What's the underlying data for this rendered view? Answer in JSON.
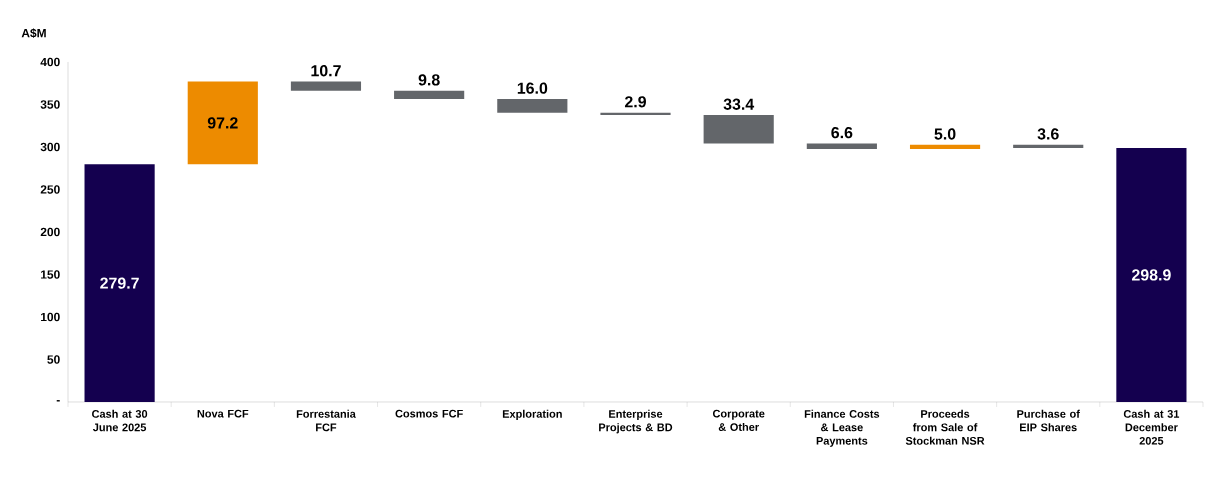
{
  "chart_data": {
    "type": "bar",
    "ylabel": "A$M",
    "categories": [
      "Cash at 30 June 2025",
      "Nova FCF",
      "Forrestania FCF",
      "Cosmos FCF",
      "Exploration",
      "Enterprise Projects & BD",
      "Corporate & Other",
      "Finance Costs & Lease Payments",
      "Proceeds from Sale of Stockman NSR",
      "Purchase of EIP Shares",
      "Cash at 31 December 2025"
    ],
    "values": [
      279.7,
      97.2,
      -10.7,
      -9.8,
      -16.0,
      -2.9,
      -33.4,
      -6.6,
      5.0,
      -3.6,
      298.9
    ],
    "base": [
      0,
      279.7,
      376.9,
      366.2,
      356.4,
      340.4,
      337.5,
      304.1,
      297.5,
      302.5,
      0
    ],
    "colors": [
      "#14004f",
      "#ed8b00",
      "#63666a",
      "#63666a",
      "#63666a",
      "#63666a",
      "#63666a",
      "#63666a",
      "#ed8b00",
      "#63666a",
      "#14004f"
    ],
    "value_labels": [
      "279.7",
      "97.2",
      "10.7",
      "9.8",
      "16.0",
      "2.9",
      "33.4",
      "6.6",
      "5.0",
      "3.6",
      "298.9"
    ],
    "ylim": [
      0,
      400
    ],
    "yticks": [
      {
        "value": 0,
        "label": "-"
      },
      50,
      100,
      150,
      200,
      250,
      300,
      350,
      400
    ],
    "grid": false
  }
}
